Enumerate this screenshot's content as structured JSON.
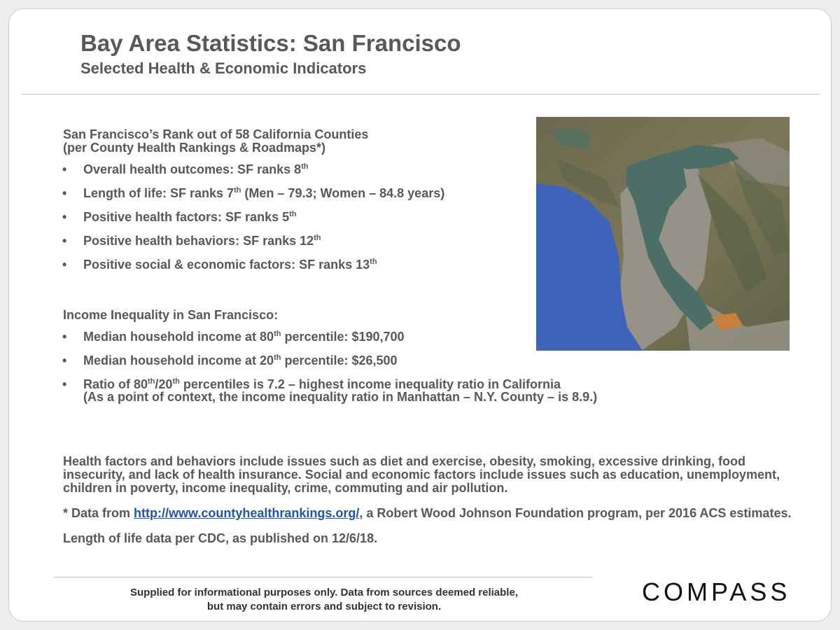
{
  "header": {
    "title": "Bay Area Statistics: San Francisco",
    "subtitle": "Selected Health & Economic Indicators"
  },
  "rank_section": {
    "heading_line1": "San Francisco’s  Rank out of 58 California  Counties",
    "heading_line2": "(per County Health Rankings & Roadmaps*)",
    "items": [
      {
        "text": "Overall health outcomes: SF ranks 8",
        "sup": "th",
        "tail": ""
      },
      {
        "text": "Length of life: SF ranks 7",
        "sup": "th",
        "tail": " (Men – 79.3; Women – 84.8 years)"
      },
      {
        "text": "Positive health factors: SF ranks 5",
        "sup": "th",
        "tail": ""
      },
      {
        "text": "Positive health behaviors: SF ranks 12",
        "sup": "th",
        "tail": ""
      },
      {
        "text": "Positive social & economic factors: SF ranks 13",
        "sup": "th",
        "tail": ""
      }
    ]
  },
  "income_section": {
    "heading": "Income  Inequality  in San Francisco:",
    "items": [
      {
        "text": "Median household income at 80",
        "sup": "th",
        "tail": " percentile: $190,700"
      },
      {
        "text": "Median household income at 20",
        "sup": "th",
        "tail": " percentile:  $26,500"
      },
      {
        "text": "Ratio of 80",
        "sup": "th",
        "mid": "/20",
        "sup2": "th",
        "tail": " percentiles is 7.2 – highest income inequality ratio in California",
        "line2": "(As a point of context, the income inequality ratio in Manhattan – N.Y. County – is 8.9.)"
      }
    ]
  },
  "notes": {
    "factors_note": "Health factors and behaviors include issues such as diet and exercise, obesity, smoking, excessive drinking, food insecurity, and lack of health insurance. Social and economic factors include issues such as education, unemployment, children in poverty, income inequality, crime, commuting and air pollution.",
    "data_prefix": "* Data from ",
    "data_link": "http://www.countyhealthrankings.org/",
    "data_suffix": ", a Robert Wood Johnson Foundation program, per 2016 ACS estimates.",
    "cdc_note": "Length of life data per CDC, as published on 12/6/18."
  },
  "footer": {
    "disclaimer_line1": "Supplied for informational purposes only. Data from sources deemed reliable,",
    "disclaimer_line2": "but may contain errors and subject to revision.",
    "logo_text": "COMPASS"
  },
  "colors": {
    "text": "#585858",
    "link": "#1f56a8",
    "ocean": "#3f63b8",
    "bay": "#4d6e66"
  }
}
